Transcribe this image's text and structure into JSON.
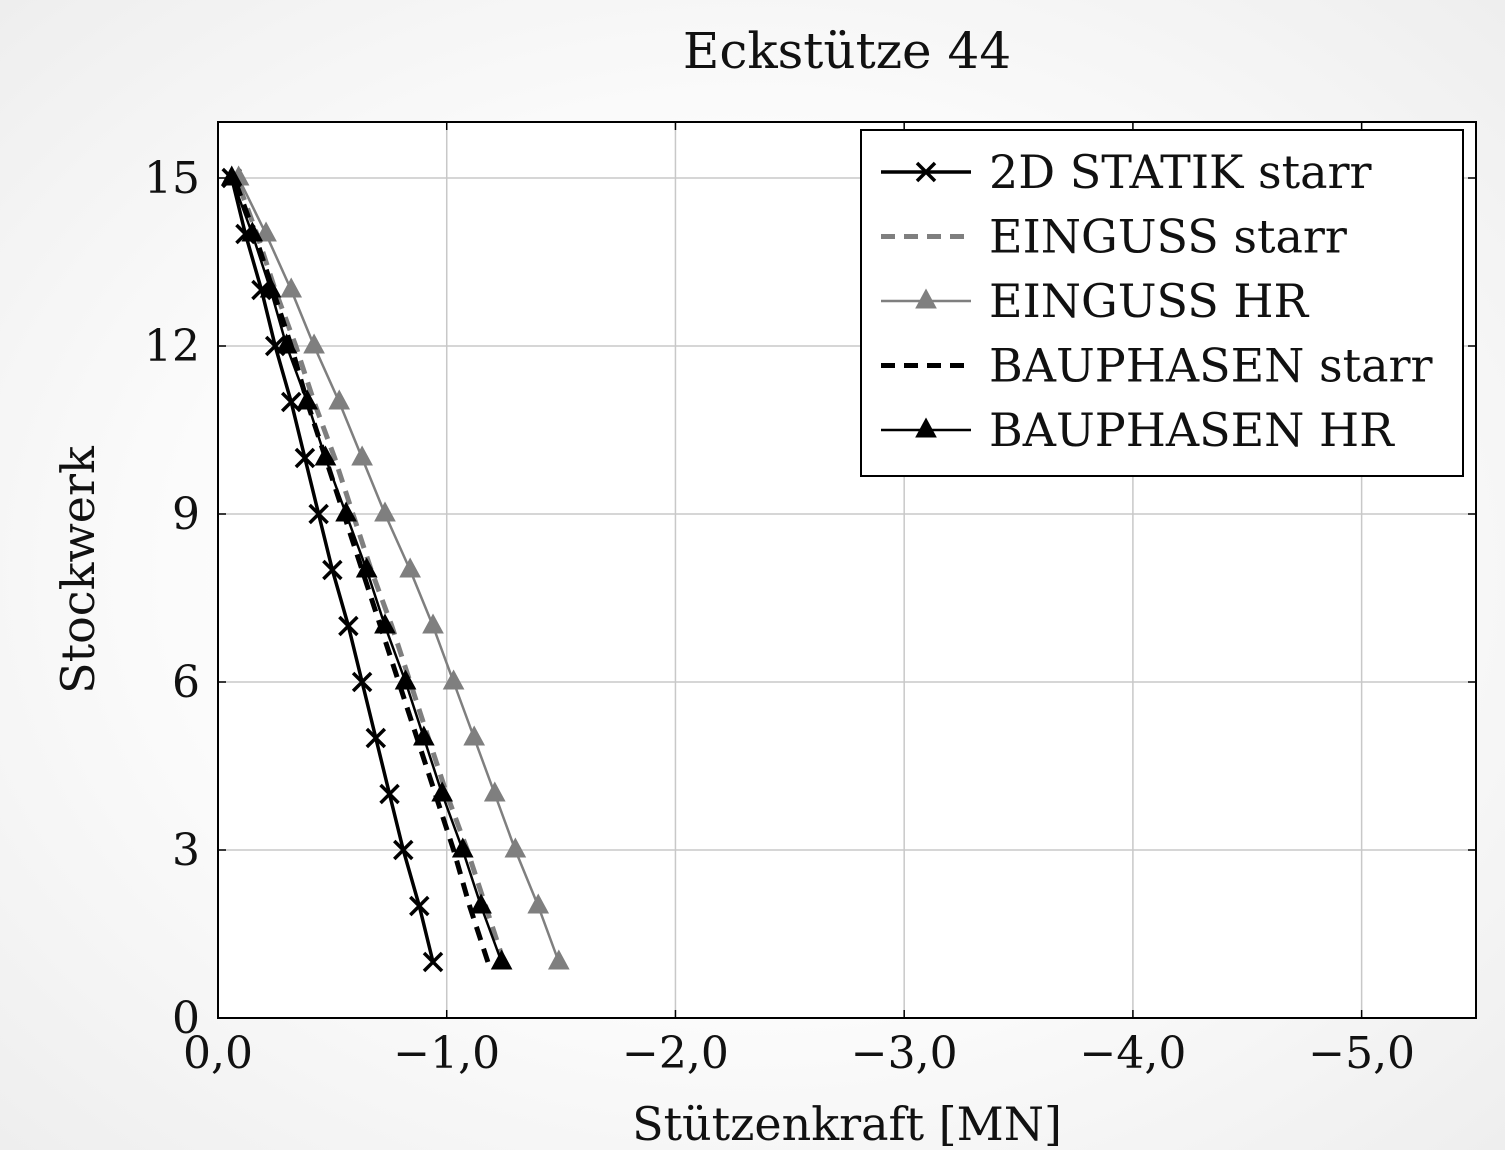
{
  "chart_data": {
    "type": "line",
    "title": "Eckstütze 44",
    "xlabel": "Stützenkraft [MN]",
    "ylabel": "Stockwerk",
    "xlim": [
      0,
      -5.5
    ],
    "ylim": [
      0,
      16
    ],
    "xticks": [
      0,
      -1,
      -2,
      -3,
      -4,
      -5
    ],
    "xtick_labels": [
      "0,0",
      "−1,0",
      "−2,0",
      "−3,0",
      "−4,0",
      "−5,0"
    ],
    "yticks": [
      0,
      3,
      6,
      9,
      12,
      15
    ],
    "ytick_labels": [
      "0",
      "3",
      "6",
      "9",
      "12",
      "15"
    ],
    "grid": true,
    "legend_position": "top-right",
    "y": [
      1,
      2,
      3,
      4,
      5,
      6,
      7,
      8,
      9,
      10,
      11,
      12,
      13,
      14,
      15
    ],
    "series": [
      {
        "name": "2D STATIK starr",
        "color": "#000000",
        "line": "solid",
        "marker": "x",
        "values": [
          -0.94,
          -0.88,
          -0.81,
          -0.75,
          -0.69,
          -0.63,
          -0.57,
          -0.5,
          -0.44,
          -0.38,
          -0.32,
          -0.25,
          -0.19,
          -0.12,
          -0.06
        ]
      },
      {
        "name": "EINGUSS starr",
        "color": "#7f7f7f",
        "line": "dashed",
        "marker": "none",
        "values": [
          -1.25,
          -1.17,
          -1.09,
          -1.0,
          -0.92,
          -0.84,
          -0.76,
          -0.67,
          -0.59,
          -0.51,
          -0.42,
          -0.34,
          -0.25,
          -0.17,
          -0.08
        ]
      },
      {
        "name": "EINGUSS HR",
        "color": "#7f7f7f",
        "line": "solid",
        "marker": "triangle",
        "values": [
          -1.49,
          -1.4,
          -1.3,
          -1.21,
          -1.12,
          -1.03,
          -0.94,
          -0.84,
          -0.73,
          -0.63,
          -0.53,
          -0.42,
          -0.32,
          -0.21,
          -0.09
        ]
      },
      {
        "name": "BAUPHASEN starr",
        "color": "#000000",
        "line": "dashed",
        "marker": "none",
        "values": [
          -1.18,
          -1.1,
          -1.03,
          -0.95,
          -0.87,
          -0.79,
          -0.71,
          -0.63,
          -0.55,
          -0.47,
          -0.39,
          -0.32,
          -0.24,
          -0.16,
          -0.07
        ]
      },
      {
        "name": "BAUPHASEN HR",
        "color": "#000000",
        "line": "solid",
        "marker": "triangle",
        "values": [
          -1.24,
          -1.15,
          -1.07,
          -0.98,
          -0.9,
          -0.82,
          -0.73,
          -0.65,
          -0.56,
          -0.47,
          -0.39,
          -0.3,
          -0.23,
          -0.15,
          -0.06
        ]
      }
    ]
  }
}
